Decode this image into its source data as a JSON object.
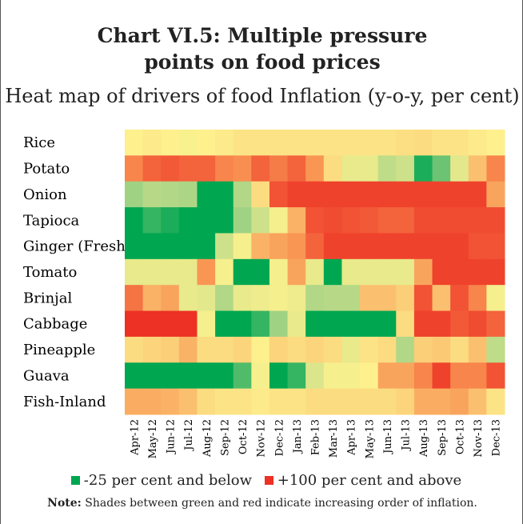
{
  "chart_data": {
    "type": "heatmap",
    "title": "Chart VI.5: Multiple pressure points on food prices",
    "subtitle": "Heat map of drivers of food Inflation (y-o-y, per cent)",
    "x": [
      "Apr-12",
      "May-12",
      "Jun-12",
      "Jul-12",
      "Aug-12",
      "Sep-12",
      "Oct-12",
      "Nov-12",
      "Dec-12",
      "Jan-13",
      "Feb-13",
      "Mar-13",
      "Apr-13",
      "May-13",
      "Jun-13",
      "Jul-13",
      "Aug-13",
      "Sep-13",
      "Oct-13",
      "Nov-13",
      "Dec-13"
    ],
    "categories": [
      "Rice",
      "Potato",
      "Onion",
      "Tapioca",
      "Ginger (Fresh)",
      "Tomato",
      "Brinjal",
      "Cabbage",
      "Pineapple",
      "Guava",
      "Fish-Inland"
    ],
    "values": [
      [
        38,
        40,
        38,
        36,
        38,
        40,
        42,
        42,
        42,
        42,
        42,
        42,
        42,
        42,
        42,
        44,
        45,
        42,
        42,
        40,
        38
      ],
      [
        75,
        85,
        88,
        85,
        85,
        75,
        72,
        85,
        78,
        85,
        70,
        45,
        30,
        30,
        15,
        20,
        -20,
        -5,
        28,
        55,
        75
      ],
      [
        5,
        12,
        10,
        8,
        -25,
        -25,
        10,
        45,
        90,
        95,
        95,
        95,
        95,
        95,
        95,
        95,
        95,
        95,
        95,
        95,
        65
      ],
      [
        -25,
        -15,
        -20,
        -25,
        -25,
        -25,
        5,
        20,
        35,
        60,
        90,
        92,
        90,
        88,
        85,
        85,
        92,
        92,
        92,
        92,
        92
      ],
      [
        -25,
        -25,
        -25,
        -25,
        -25,
        20,
        35,
        60,
        65,
        70,
        85,
        95,
        95,
        95,
        95,
        95,
        95,
        95,
        95,
        90,
        90
      ],
      [
        30,
        30,
        30,
        30,
        70,
        35,
        -25,
        -25,
        35,
        65,
        30,
        -25,
        30,
        30,
        30,
        30,
        65,
        95,
        95,
        95,
        95
      ],
      [
        80,
        60,
        65,
        30,
        28,
        10,
        30,
        32,
        35,
        32,
        10,
        12,
        12,
        55,
        55,
        50,
        90,
        55,
        90,
        75,
        35
      ],
      [
        100,
        100,
        100,
        100,
        35,
        -25,
        -25,
        -15,
        5,
        30,
        -25,
        -25,
        -25,
        -25,
        -25,
        45,
        95,
        95,
        88,
        92,
        85
      ],
      [
        45,
        48,
        50,
        60,
        45,
        45,
        48,
        38,
        48,
        45,
        48,
        45,
        30,
        42,
        45,
        10,
        50,
        52,
        45,
        55,
        15
      ],
      [
        -25,
        -25,
        -25,
        -25,
        -25,
        -25,
        -10,
        35,
        -25,
        -15,
        25,
        35,
        35,
        38,
        65,
        65,
        75,
        95,
        75,
        75,
        90
      ],
      [
        62,
        62,
        60,
        55,
        45,
        42,
        42,
        40,
        42,
        42,
        45,
        45,
        45,
        45,
        45,
        48,
        62,
        62,
        65,
        55,
        42
      ]
    ],
    "zlim": [
      -25,
      100
    ],
    "colors": [
      "#00a650",
      "#a7d486",
      "#fdf18e",
      "#f99a56",
      "#ed3124"
    ],
    "legend": [
      {
        "label": "-25 per cent and below",
        "color": "#00a650"
      },
      {
        "label": "+100 per cent and above",
        "color": "#ed3124"
      }
    ],
    "note_label": "Note:",
    "note": "Shades between green and red indicate increasing order of inflation."
  }
}
